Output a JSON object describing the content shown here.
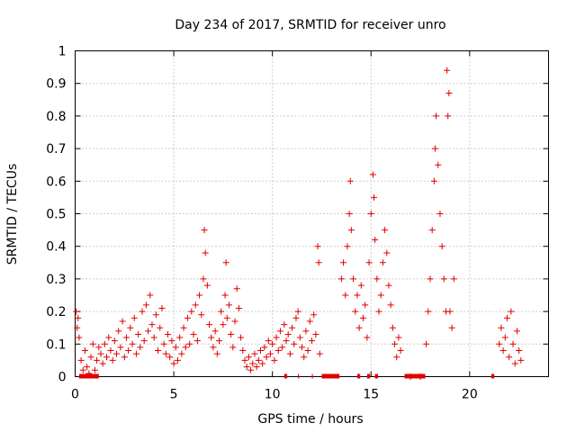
{
  "chart_data": {
    "type": "scatter",
    "title": "Day 234 of 2017, SRMTID for receiver unro",
    "xlabel": "GPS time / hours",
    "ylabel": "SRMTID / TECUs",
    "xlim": [
      0,
      24
    ],
    "ylim": [
      0,
      1
    ],
    "xticks": [
      0,
      5,
      10,
      15,
      20
    ],
    "xtick_labels": [
      "0",
      "5",
      "10",
      "15",
      "20"
    ],
    "yticks": [
      0,
      0.1,
      0.2,
      0.3,
      0.4,
      0.5,
      0.6,
      0.7,
      0.8,
      0.9,
      1
    ],
    "ytick_labels": [
      "0",
      "0.1",
      "0.2",
      "0.3",
      "0.4",
      "0.5",
      "0.6",
      "0.7",
      "0.8",
      "0.9",
      "1"
    ],
    "grid": true,
    "marker": "plus",
    "color": "#e00000",
    "series": [
      {
        "name": "SRMTID",
        "points": [
          [
            0.05,
            0.2
          ],
          [
            0.1,
            0.15
          ],
          [
            0.15,
            0.18
          ],
          [
            0.2,
            0.12
          ],
          [
            0.3,
            0.05
          ],
          [
            0.4,
            0.02
          ],
          [
            0.5,
            0.08
          ],
          [
            0.6,
            0.03
          ],
          [
            0.7,
            0.01
          ],
          [
            0.8,
            0.06
          ],
          [
            0.9,
            0.1
          ],
          [
            1.0,
            0.02
          ],
          [
            1.1,
            0.05
          ],
          [
            1.2,
            0.09
          ],
          [
            1.3,
            0.07
          ],
          [
            1.4,
            0.04
          ],
          [
            1.5,
            0.1
          ],
          [
            1.6,
            0.06
          ],
          [
            1.7,
            0.12
          ],
          [
            1.8,
            0.08
          ],
          [
            1.9,
            0.05
          ],
          [
            2.0,
            0.11
          ],
          [
            2.1,
            0.07
          ],
          [
            2.2,
            0.14
          ],
          [
            2.3,
            0.09
          ],
          [
            2.4,
            0.17
          ],
          [
            2.5,
            0.06
          ],
          [
            2.6,
            0.12
          ],
          [
            2.7,
            0.08
          ],
          [
            2.8,
            0.15
          ],
          [
            2.9,
            0.1
          ],
          [
            3.0,
            0.18
          ],
          [
            3.1,
            0.07
          ],
          [
            3.2,
            0.13
          ],
          [
            3.3,
            0.09
          ],
          [
            3.4,
            0.2
          ],
          [
            3.5,
            0.11
          ],
          [
            3.6,
            0.22
          ],
          [
            3.7,
            0.14
          ],
          [
            3.8,
            0.25
          ],
          [
            3.9,
            0.16
          ],
          [
            4.0,
            0.12
          ],
          [
            4.1,
            0.19
          ],
          [
            4.2,
            0.08
          ],
          [
            4.3,
            0.15
          ],
          [
            4.4,
            0.21
          ],
          [
            4.5,
            0.1
          ],
          [
            4.6,
            0.07
          ],
          [
            4.7,
            0.13
          ],
          [
            4.8,
            0.06
          ],
          [
            4.9,
            0.11
          ],
          [
            5.0,
            0.04
          ],
          [
            5.1,
            0.09
          ],
          [
            5.2,
            0.05
          ],
          [
            5.3,
            0.12
          ],
          [
            5.4,
            0.07
          ],
          [
            5.5,
            0.15
          ],
          [
            5.6,
            0.09
          ],
          [
            5.7,
            0.18
          ],
          [
            5.8,
            0.1
          ],
          [
            5.9,
            0.2
          ],
          [
            6.0,
            0.13
          ],
          [
            6.1,
            0.22
          ],
          [
            6.2,
            0.11
          ],
          [
            6.3,
            0.25
          ],
          [
            6.4,
            0.19
          ],
          [
            6.5,
            0.3
          ],
          [
            6.55,
            0.45
          ],
          [
            6.6,
            0.38
          ],
          [
            6.7,
            0.28
          ],
          [
            6.8,
            0.16
          ],
          [
            6.9,
            0.12
          ],
          [
            7.0,
            0.09
          ],
          [
            7.1,
            0.14
          ],
          [
            7.2,
            0.07
          ],
          [
            7.3,
            0.11
          ],
          [
            7.4,
            0.2
          ],
          [
            7.5,
            0.16
          ],
          [
            7.6,
            0.25
          ],
          [
            7.65,
            0.35
          ],
          [
            7.7,
            0.18
          ],
          [
            7.8,
            0.22
          ],
          [
            7.9,
            0.13
          ],
          [
            8.0,
            0.09
          ],
          [
            8.1,
            0.17
          ],
          [
            8.2,
            0.27
          ],
          [
            8.3,
            0.21
          ],
          [
            8.4,
            0.12
          ],
          [
            8.5,
            0.08
          ],
          [
            8.6,
            0.05
          ],
          [
            8.7,
            0.03
          ],
          [
            8.8,
            0.06
          ],
          [
            8.9,
            0.02
          ],
          [
            9.0,
            0.04
          ],
          [
            9.1,
            0.07
          ],
          [
            9.2,
            0.03
          ],
          [
            9.3,
            0.05
          ],
          [
            9.4,
            0.08
          ],
          [
            9.5,
            0.04
          ],
          [
            9.6,
            0.09
          ],
          [
            9.7,
            0.06
          ],
          [
            9.8,
            0.11
          ],
          [
            9.9,
            0.07
          ],
          [
            10.0,
            0.1
          ],
          [
            10.1,
            0.05
          ],
          [
            10.2,
            0.12
          ],
          [
            10.3,
            0.08
          ],
          [
            10.4,
            0.14
          ],
          [
            10.5,
            0.09
          ],
          [
            10.6,
            0.16
          ],
          [
            10.7,
            0.11
          ],
          [
            10.8,
            0.13
          ],
          [
            10.9,
            0.07
          ],
          [
            11.0,
            0.15
          ],
          [
            11.1,
            0.1
          ],
          [
            11.2,
            0.18
          ],
          [
            11.3,
            0.2
          ],
          [
            11.4,
            0.12
          ],
          [
            11.5,
            0.09
          ],
          [
            11.6,
            0.06
          ],
          [
            11.7,
            0.14
          ],
          [
            11.8,
            0.08
          ],
          [
            11.9,
            0.17
          ],
          [
            12.0,
            0.11
          ],
          [
            12.1,
            0.19
          ],
          [
            12.2,
            0.13
          ],
          [
            12.3,
            0.4
          ],
          [
            12.35,
            0.35
          ],
          [
            12.4,
            0.07
          ],
          [
            13.5,
            0.3
          ],
          [
            13.6,
            0.35
          ],
          [
            13.7,
            0.25
          ],
          [
            13.8,
            0.4
          ],
          [
            13.9,
            0.5
          ],
          [
            13.95,
            0.6
          ],
          [
            14.0,
            0.45
          ],
          [
            14.1,
            0.3
          ],
          [
            14.2,
            0.2
          ],
          [
            14.3,
            0.25
          ],
          [
            14.4,
            0.15
          ],
          [
            14.5,
            0.28
          ],
          [
            14.6,
            0.18
          ],
          [
            14.7,
            0.22
          ],
          [
            14.8,
            0.12
          ],
          [
            14.9,
            0.35
          ],
          [
            15.0,
            0.5
          ],
          [
            15.1,
            0.62
          ],
          [
            15.15,
            0.55
          ],
          [
            15.2,
            0.42
          ],
          [
            15.3,
            0.3
          ],
          [
            15.4,
            0.2
          ],
          [
            15.5,
            0.25
          ],
          [
            15.6,
            0.35
          ],
          [
            15.7,
            0.45
          ],
          [
            15.8,
            0.38
          ],
          [
            15.9,
            0.28
          ],
          [
            16.0,
            0.22
          ],
          [
            16.1,
            0.15
          ],
          [
            16.2,
            0.1
          ],
          [
            16.3,
            0.06
          ],
          [
            16.4,
            0.12
          ],
          [
            16.5,
            0.08
          ],
          [
            17.0,
            0.0
          ],
          [
            17.5,
            0.0
          ],
          [
            17.8,
            0.1
          ],
          [
            17.9,
            0.2
          ],
          [
            18.0,
            0.3
          ],
          [
            18.1,
            0.45
          ],
          [
            18.2,
            0.6
          ],
          [
            18.25,
            0.7
          ],
          [
            18.3,
            0.8
          ],
          [
            18.4,
            0.65
          ],
          [
            18.5,
            0.5
          ],
          [
            18.6,
            0.4
          ],
          [
            18.7,
            0.3
          ],
          [
            18.8,
            0.2
          ],
          [
            18.85,
            0.94
          ],
          [
            18.9,
            0.8
          ],
          [
            18.95,
            0.87
          ],
          [
            19.0,
            0.2
          ],
          [
            19.1,
            0.15
          ],
          [
            19.2,
            0.3
          ],
          [
            21.5,
            0.1
          ],
          [
            21.6,
            0.15
          ],
          [
            21.7,
            0.08
          ],
          [
            21.8,
            0.12
          ],
          [
            21.9,
            0.18
          ],
          [
            22.0,
            0.06
          ],
          [
            22.1,
            0.2
          ],
          [
            22.2,
            0.1
          ],
          [
            22.3,
            0.04
          ],
          [
            22.4,
            0.14
          ],
          [
            22.5,
            0.08
          ],
          [
            22.6,
            0.05
          ]
        ]
      }
    ],
    "zero_segments": [
      [
        0.2,
        1.2
      ],
      [
        10.6,
        10.75
      ],
      [
        11.3,
        11.35
      ],
      [
        12.0,
        12.05
      ],
      [
        12.5,
        13.4
      ],
      [
        14.3,
        14.45
      ],
      [
        14.8,
        14.95
      ],
      [
        15.2,
        15.35
      ],
      [
        16.7,
        17.75
      ],
      [
        21.1,
        21.25
      ]
    ]
  }
}
